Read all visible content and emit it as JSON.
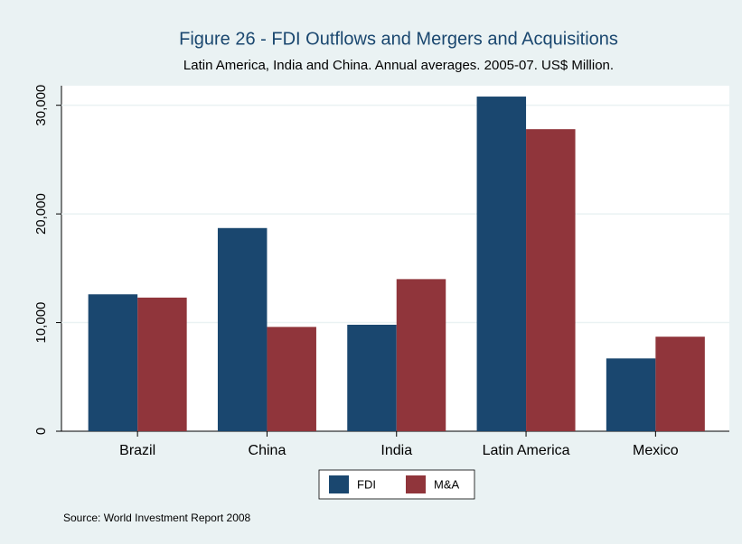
{
  "chart_data": {
    "type": "bar",
    "title": "Figure 26 - FDI Outflows and Mergers and Acquisitions",
    "subtitle": "Latin America, India and China. Annual averages. 2005-07. US$ Million.",
    "source": "Source: World Investment Report 2008",
    "categories": [
      "Brazil",
      "China",
      "India",
      "Latin America",
      "Mexico"
    ],
    "series": [
      {
        "name": "FDI",
        "color": "#1a476f",
        "values": [
          12600,
          18700,
          9800,
          30800,
          6700
        ]
      },
      {
        "name": "M&A",
        "color": "#90353b",
        "values": [
          12300,
          9600,
          14000,
          27800,
          8700
        ]
      }
    ],
    "ylim": [
      0,
      31800
    ],
    "yticks": [
      0,
      {
        "value": 10000,
        "label": "10,000"
      },
      {
        "value": 20000,
        "label": "20,000"
      },
      {
        "value": 30000,
        "label": "30,000"
      }
    ],
    "grid": true,
    "legend": "bottom"
  }
}
